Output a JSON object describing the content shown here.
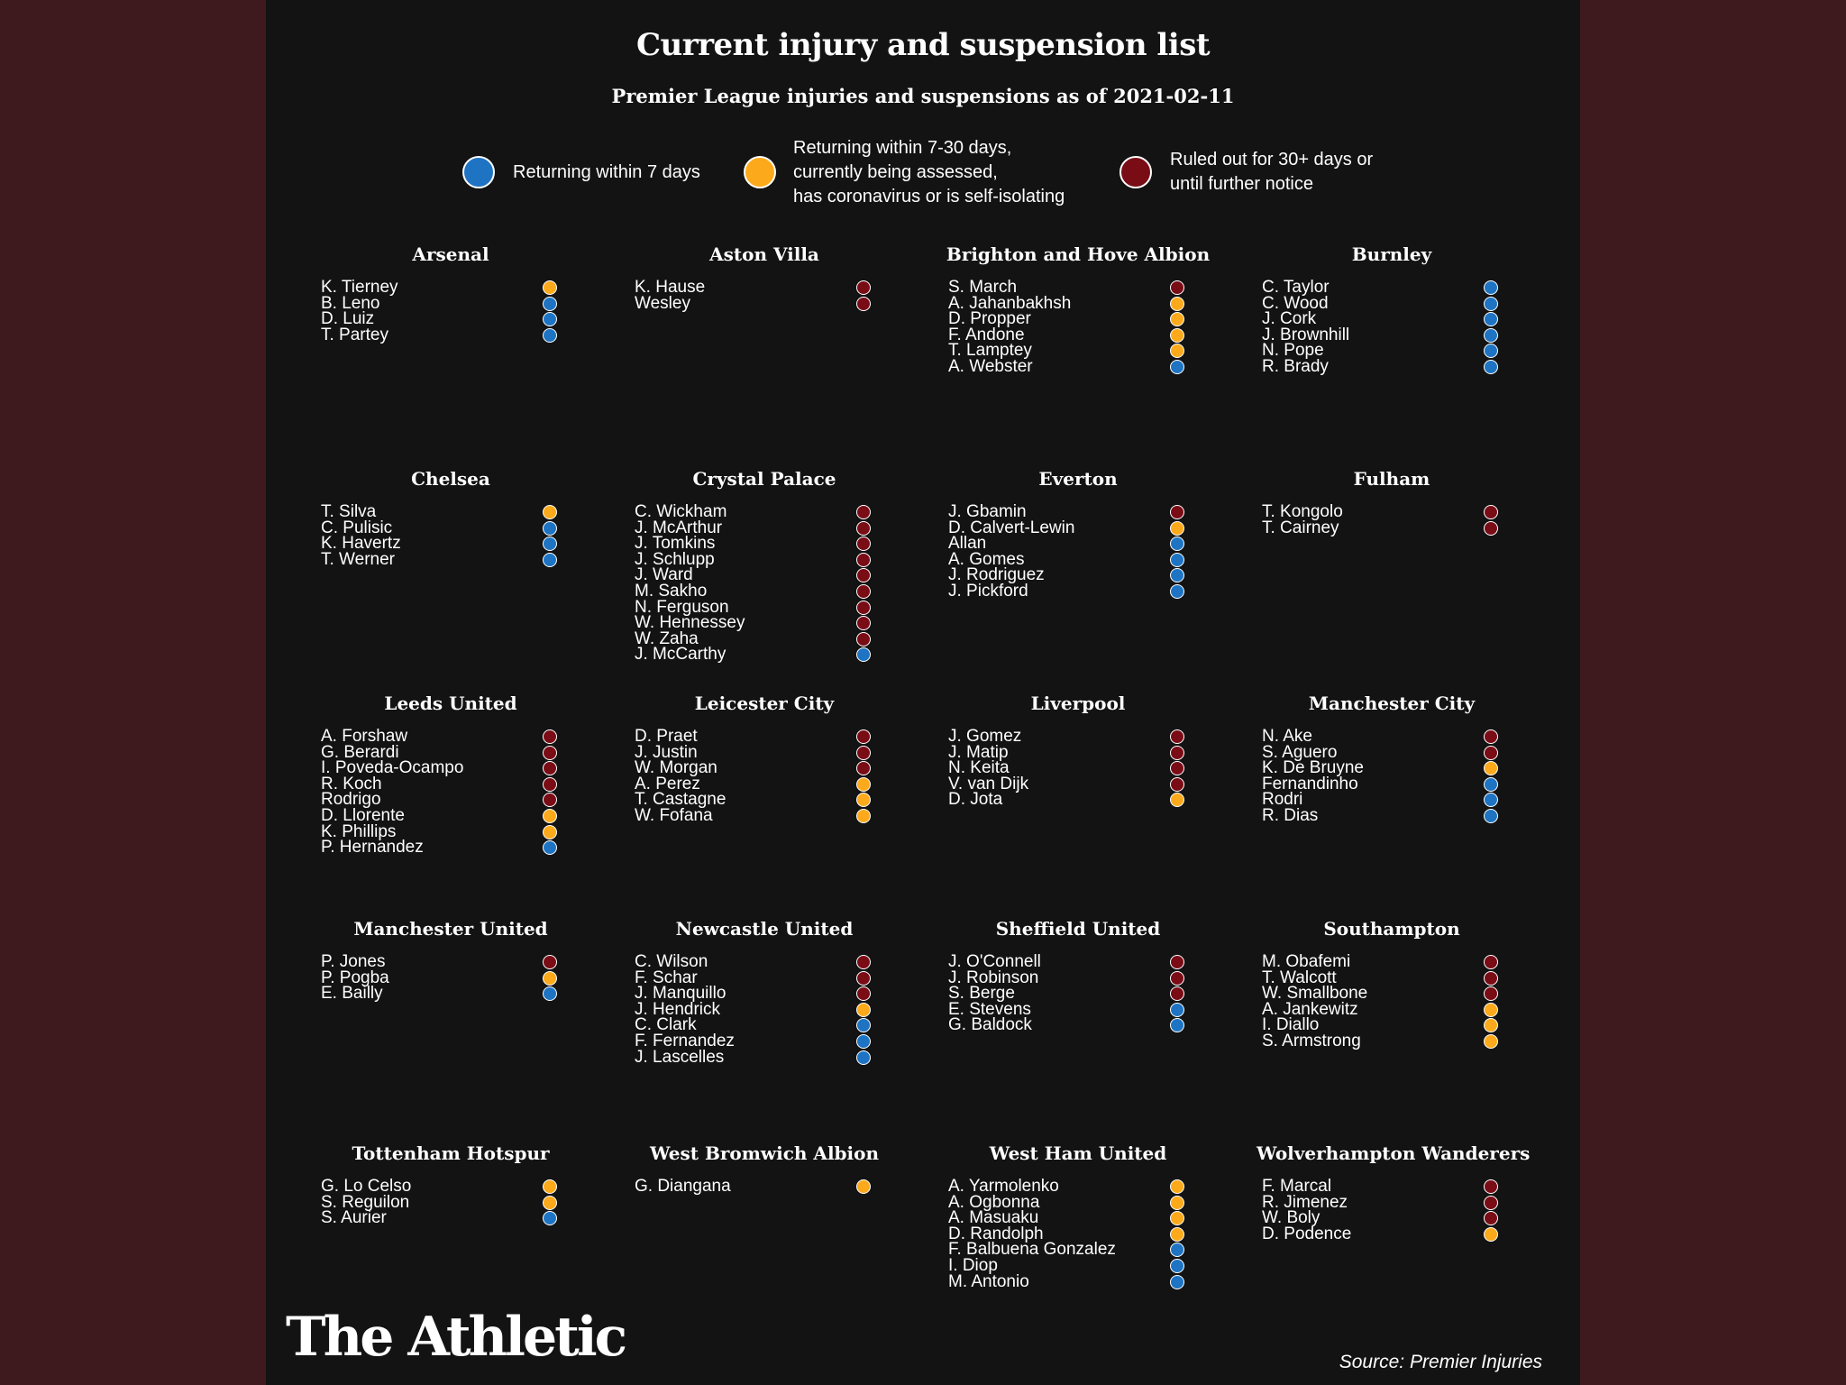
{
  "title": "Current injury and suspension list",
  "subtitle": "Premier League injuries and suspensions as of 2021-02-11",
  "colors": {
    "blue": "#1e74c3",
    "orange": "#fcaa1b",
    "red": "#7a0c16"
  },
  "legend": [
    {
      "status": "blue",
      "label": "Returning within 7 days"
    },
    {
      "status": "orange",
      "label": "Returning within 7-30 days,\ncurrently being assessed,\nhas coronavirus or is self-isolating"
    },
    {
      "status": "red",
      "label": "Ruled out for 30+ days or\nuntil further notice"
    }
  ],
  "teams": [
    {
      "name": "Arsenal",
      "players": [
        [
          "K. Tierney",
          "orange"
        ],
        [
          "B. Leno",
          "blue"
        ],
        [
          "D. Luiz",
          "blue"
        ],
        [
          "T. Partey",
          "blue"
        ]
      ]
    },
    {
      "name": "Aston Villa",
      "players": [
        [
          "K. Hause",
          "red"
        ],
        [
          "Wesley",
          "red"
        ]
      ]
    },
    {
      "name": "Brighton and Hove Albion",
      "players": [
        [
          "S. March",
          "red"
        ],
        [
          "A. Jahanbakhsh",
          "orange"
        ],
        [
          "D. Propper",
          "orange"
        ],
        [
          "F. Andone",
          "orange"
        ],
        [
          "T. Lamptey",
          "orange"
        ],
        [
          "A. Webster",
          "blue"
        ]
      ]
    },
    {
      "name": "Burnley",
      "players": [
        [
          "C. Taylor",
          "blue"
        ],
        [
          "C. Wood",
          "blue"
        ],
        [
          "J. Cork",
          "blue"
        ],
        [
          "J. Brownhill",
          "blue"
        ],
        [
          "N. Pope",
          "blue"
        ],
        [
          "R. Brady",
          "blue"
        ]
      ]
    },
    {
      "name": "Chelsea",
      "players": [
        [
          "T. Silva",
          "orange"
        ],
        [
          "C. Pulisic",
          "blue"
        ],
        [
          "K. Havertz",
          "blue"
        ],
        [
          "T. Werner",
          "blue"
        ]
      ]
    },
    {
      "name": "Crystal Palace",
      "players": [
        [
          "C. Wickham",
          "red"
        ],
        [
          "J. McArthur",
          "red"
        ],
        [
          "J. Tomkins",
          "red"
        ],
        [
          "J. Schlupp",
          "red"
        ],
        [
          "J. Ward",
          "red"
        ],
        [
          "M. Sakho",
          "red"
        ],
        [
          "N. Ferguson",
          "red"
        ],
        [
          "W. Hennessey",
          "red"
        ],
        [
          "W. Zaha",
          "red"
        ],
        [
          "J. McCarthy",
          "blue"
        ]
      ]
    },
    {
      "name": "Everton",
      "players": [
        [
          "J. Gbamin",
          "red"
        ],
        [
          "D. Calvert-Lewin",
          "orange"
        ],
        [
          "Allan",
          "blue"
        ],
        [
          "A. Gomes",
          "blue"
        ],
        [
          "J. Rodriguez",
          "blue"
        ],
        [
          "J. Pickford",
          "blue"
        ]
      ]
    },
    {
      "name": "Fulham",
      "players": [
        [
          "T. Kongolo",
          "red"
        ],
        [
          "T. Cairney",
          "red"
        ]
      ]
    },
    {
      "name": "Leeds United",
      "players": [
        [
          "A. Forshaw",
          "red"
        ],
        [
          "G. Berardi",
          "red"
        ],
        [
          "I. Poveda-Ocampo",
          "red"
        ],
        [
          "R. Koch",
          "red"
        ],
        [
          "Rodrigo",
          "red"
        ],
        [
          "D. Llorente",
          "orange"
        ],
        [
          "K. Phillips",
          "orange"
        ],
        [
          "P. Hernandez",
          "blue"
        ]
      ]
    },
    {
      "name": "Leicester City",
      "players": [
        [
          "D. Praet",
          "red"
        ],
        [
          "J. Justin",
          "red"
        ],
        [
          "W. Morgan",
          "red"
        ],
        [
          "A. Perez",
          "orange"
        ],
        [
          "T. Castagne",
          "orange"
        ],
        [
          "W. Fofana",
          "orange"
        ]
      ]
    },
    {
      "name": "Liverpool",
      "players": [
        [
          "J. Gomez",
          "red"
        ],
        [
          "J. Matip",
          "red"
        ],
        [
          "N. Keita",
          "red"
        ],
        [
          "V. van Dijk",
          "red"
        ],
        [
          "D. Jota",
          "orange"
        ]
      ]
    },
    {
      "name": "Manchester City",
      "players": [
        [
          "N. Ake",
          "red"
        ],
        [
          "S. Aguero",
          "red"
        ],
        [
          "K. De Bruyne",
          "orange"
        ],
        [
          "Fernandinho",
          "blue"
        ],
        [
          "Rodri",
          "blue"
        ],
        [
          "R. Dias",
          "blue"
        ]
      ]
    },
    {
      "name": "Manchester United",
      "players": [
        [
          "P. Jones",
          "red"
        ],
        [
          "P. Pogba",
          "orange"
        ],
        [
          "E. Bailly",
          "blue"
        ]
      ]
    },
    {
      "name": "Newcastle United",
      "players": [
        [
          "C. Wilson",
          "red"
        ],
        [
          "F. Schar",
          "red"
        ],
        [
          "J. Manquillo",
          "red"
        ],
        [
          "J. Hendrick",
          "orange"
        ],
        [
          "C. Clark",
          "blue"
        ],
        [
          "F. Fernandez",
          "blue"
        ],
        [
          "J. Lascelles",
          "blue"
        ]
      ]
    },
    {
      "name": "Sheffield United",
      "players": [
        [
          "J. O'Connell",
          "red"
        ],
        [
          "J. Robinson",
          "red"
        ],
        [
          "S. Berge",
          "red"
        ],
        [
          "E. Stevens",
          "blue"
        ],
        [
          "G. Baldock",
          "blue"
        ]
      ]
    },
    {
      "name": "Southampton",
      "players": [
        [
          "M. Obafemi",
          "red"
        ],
        [
          "T. Walcott",
          "red"
        ],
        [
          "W. Smallbone",
          "red"
        ],
        [
          "A. Jankewitz",
          "orange"
        ],
        [
          "I. Diallo",
          "orange"
        ],
        [
          "S. Armstrong",
          "orange"
        ]
      ]
    },
    {
      "name": "Tottenham Hotspur",
      "players": [
        [
          "G. Lo Celso",
          "orange"
        ],
        [
          "S. Reguilon",
          "orange"
        ],
        [
          "S. Aurier",
          "blue"
        ]
      ]
    },
    {
      "name": "West Bromwich Albion",
      "players": [
        [
          "G. Diangana",
          "orange"
        ]
      ]
    },
    {
      "name": "West Ham United",
      "players": [
        [
          "A. Yarmolenko",
          "orange"
        ],
        [
          "A. Ogbonna",
          "orange"
        ],
        [
          "A. Masuaku",
          "orange"
        ],
        [
          "D. Randolph",
          "orange"
        ],
        [
          "F. Balbuena Gonzalez",
          "blue"
        ],
        [
          "I. Diop",
          "blue"
        ],
        [
          "M. Antonio",
          "blue"
        ]
      ]
    },
    {
      "name": "Wolverhampton Wanderers",
      "players": [
        [
          "F. Marcal",
          "red"
        ],
        [
          "R. Jimenez",
          "red"
        ],
        [
          "W. Boly",
          "red"
        ],
        [
          "D. Podence",
          "orange"
        ]
      ]
    }
  ],
  "footer": {
    "logo": "The Athletic",
    "source": "Source: Premier Injuries"
  }
}
